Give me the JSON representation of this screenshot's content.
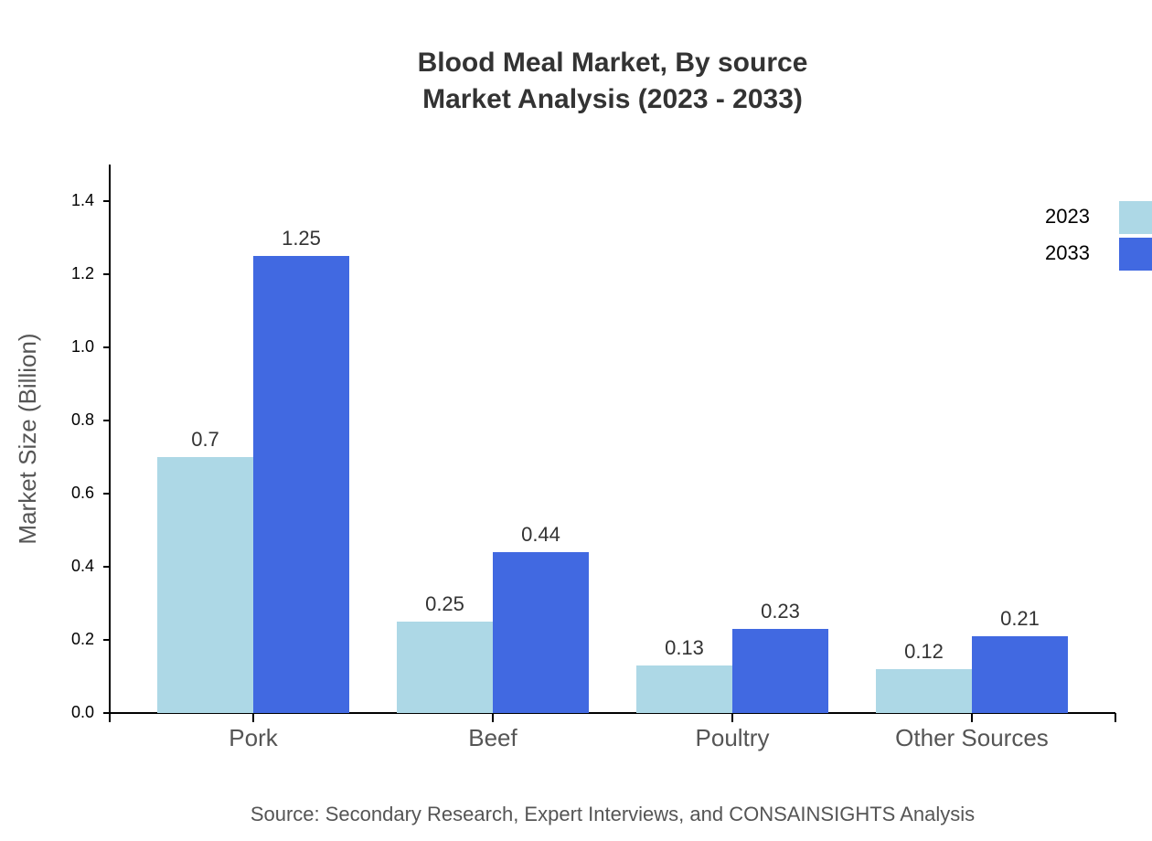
{
  "chart_data": {
    "type": "bar",
    "title": "Blood Meal Market, By source",
    "subtitle": "Market Analysis (2023 - 2033)",
    "y_label": "Market Size (Billion)",
    "source": "Source: Secondary Research, Expert Interviews, and CONSAINSIGHTS Analysis",
    "categories": [
      "Pork",
      "Beef",
      "Poultry",
      "Other Sources"
    ],
    "series": [
      {
        "name": "2023",
        "color": "#add8e6",
        "values": [
          0.7,
          0.25,
          0.13,
          0.12
        ]
      },
      {
        "name": "2033",
        "color": "#4169e1",
        "values": [
          1.25,
          0.44,
          0.23,
          0.21
        ]
      }
    ],
    "ylim": [
      0,
      1.5
    ],
    "yticks": [
      {
        "value": 0,
        "label": "0.0"
      },
      0.2,
      0.4,
      0.6,
      0.8,
      {
        "value": 1,
        "label": "1.0"
      },
      1.2,
      1.4
    ],
    "grid": false,
    "legend": "top-right"
  }
}
